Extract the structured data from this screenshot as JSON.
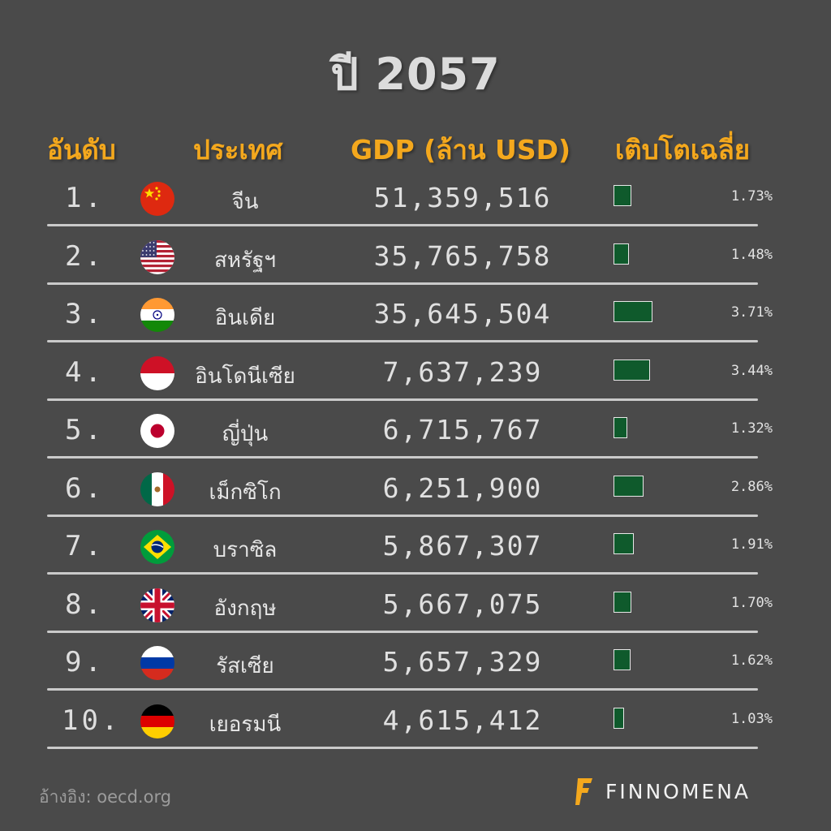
{
  "title": "ปี 2057",
  "headers": {
    "rank": "อันดับ",
    "country": "ประเทศ",
    "gdp": "GDP (ล้าน USD)",
    "growth": "เติบโตเฉลี่ย"
  },
  "colors": {
    "background": "#4a4a4a",
    "header": "#f4a81d",
    "bar_fill": "#0f5a2c"
  },
  "chart_data": {
    "type": "table",
    "title": "ปี 2057",
    "columns": [
      "อันดับ",
      "ประเทศ",
      "GDP (ล้าน USD)",
      "เติบโตเฉลี่ย"
    ],
    "rows": [
      {
        "rank": "1.",
        "flag": "china-flag-icon",
        "country": "จีน",
        "gdp": "51,359,516",
        "growth": 1.73,
        "growth_label": "1.73%"
      },
      {
        "rank": "2.",
        "flag": "usa-flag-icon",
        "country": "สหรัฐฯ",
        "gdp": "35,765,758",
        "growth": 1.48,
        "growth_label": "1.48%"
      },
      {
        "rank": "3.",
        "flag": "india-flag-icon",
        "country": "อินเดีย",
        "gdp": "35,645,504",
        "growth": 3.71,
        "growth_label": "3.71%"
      },
      {
        "rank": "4.",
        "flag": "indonesia-flag-icon",
        "country": "อินโดนีเซีย",
        "gdp": "7,637,239",
        "growth": 3.44,
        "growth_label": "3.44%"
      },
      {
        "rank": "5.",
        "flag": "japan-flag-icon",
        "country": "ญี่ปุ่น",
        "gdp": "6,715,767",
        "growth": 1.32,
        "growth_label": "1.32%"
      },
      {
        "rank": "6.",
        "flag": "mexico-flag-icon",
        "country": "เม็กซิโก",
        "gdp": "6,251,900",
        "growth": 2.86,
        "growth_label": "2.86%"
      },
      {
        "rank": "7.",
        "flag": "brazil-flag-icon",
        "country": "บราซิล",
        "gdp": "5,867,307",
        "growth": 1.91,
        "growth_label": "1.91%"
      },
      {
        "rank": "8.",
        "flag": "uk-flag-icon",
        "country": "อังกฤษ",
        "gdp": "5,667,075",
        "growth": 1.7,
        "growth_label": "1.70%"
      },
      {
        "rank": "9.",
        "flag": "russia-flag-icon",
        "country": "รัสเซีย",
        "gdp": "5,657,329",
        "growth": 1.62,
        "growth_label": "1.62%"
      },
      {
        "rank": "10.",
        "flag": "germany-flag-icon",
        "country": "เยอรมนี",
        "gdp": "4,615,412",
        "growth": 1.03,
        "growth_label": "1.03%"
      }
    ]
  },
  "source": "อ้างอิง: oecd.org",
  "logo": {
    "text": "FINNOMENA",
    "icon": "finnomena-logo-icon"
  }
}
